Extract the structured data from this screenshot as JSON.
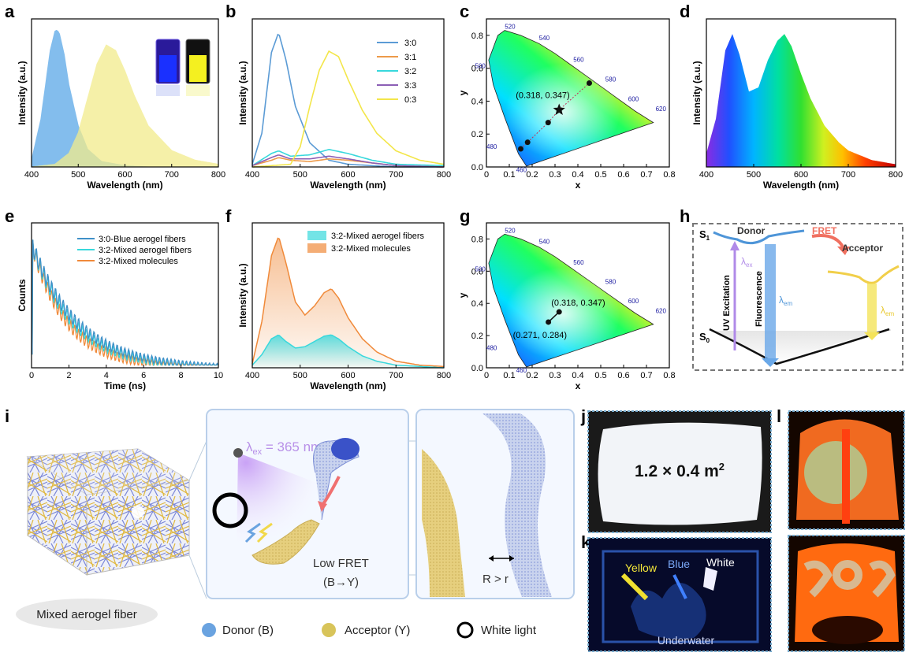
{
  "panels": {
    "a": "a",
    "b": "b",
    "c": "c",
    "d": "d",
    "e": "e",
    "f": "f",
    "g": "g",
    "h": "h",
    "i": "i",
    "j": "j",
    "k": "k",
    "l": "l"
  },
  "chart_data": [
    {
      "panel": "a",
      "type": "area",
      "xlabel": "Wavelength (nm)",
      "ylabel": "Intensity (a.u.)",
      "xlim": [
        400,
        800
      ],
      "xticks": [
        400,
        500,
        600,
        700,
        800
      ],
      "series": [
        {
          "color": "#5aa8e8",
          "x": [
            400,
            420,
            440,
            450,
            455,
            460,
            470,
            480,
            500,
            520,
            550,
            600,
            650,
            700,
            800
          ],
          "y": [
            0.05,
            0.35,
            0.85,
            0.99,
            1.0,
            0.97,
            0.82,
            0.6,
            0.3,
            0.13,
            0.04,
            0.01,
            0,
            0,
            0
          ]
        },
        {
          "color": "#f2ec8c",
          "x": [
            400,
            450,
            480,
            500,
            520,
            540,
            560,
            580,
            600,
            620,
            650,
            700,
            750,
            800
          ],
          "y": [
            0,
            0.02,
            0.1,
            0.25,
            0.5,
            0.75,
            0.89,
            0.85,
            0.7,
            0.52,
            0.3,
            0.12,
            0.05,
            0.02
          ]
        }
      ]
    },
    {
      "panel": "b",
      "type": "line",
      "xlabel": "Wavelength (nm)",
      "ylabel": "Intensity (a.u.)",
      "xlim": [
        400,
        800
      ],
      "xticks": [
        400,
        500,
        600,
        700,
        800
      ],
      "legend_position": "top-right",
      "series": [
        {
          "name": "3:0",
          "color": "#5b9bd5",
          "x": [
            400,
            420,
            440,
            455,
            470,
            490,
            520,
            560,
            600,
            700,
            800
          ],
          "y": [
            0.02,
            0.25,
            0.85,
            1.0,
            0.8,
            0.45,
            0.18,
            0.05,
            0.02,
            0,
            0
          ]
        },
        {
          "name": "3:1",
          "color": "#ed9a4a",
          "x": [
            400,
            440,
            455,
            480,
            520,
            560,
            600,
            650,
            700,
            800
          ],
          "y": [
            0.01,
            0.05,
            0.07,
            0.05,
            0.04,
            0.06,
            0.05,
            0.03,
            0.01,
            0
          ]
        },
        {
          "name": "3:2",
          "color": "#38d8dc",
          "x": [
            400,
            440,
            455,
            480,
            520,
            560,
            600,
            650,
            700,
            800
          ],
          "y": [
            0.01,
            0.1,
            0.12,
            0.08,
            0.09,
            0.13,
            0.1,
            0.05,
            0.02,
            0.01
          ]
        },
        {
          "name": "3:3",
          "color": "#8c5fb5",
          "x": [
            400,
            440,
            455,
            480,
            520,
            560,
            600,
            650,
            700,
            800
          ],
          "y": [
            0.01,
            0.07,
            0.09,
            0.06,
            0.06,
            0.08,
            0.06,
            0.03,
            0.01,
            0
          ]
        },
        {
          "name": "0:3",
          "color": "#f3e64a",
          "x": [
            400,
            480,
            500,
            520,
            540,
            560,
            580,
            600,
            630,
            660,
            700,
            750,
            800
          ],
          "y": [
            0,
            0.02,
            0.15,
            0.45,
            0.72,
            0.86,
            0.82,
            0.65,
            0.42,
            0.25,
            0.12,
            0.05,
            0.02
          ]
        }
      ]
    },
    {
      "panel": "c",
      "type": "scatter",
      "xlabel": "x",
      "ylabel": "y",
      "xlim": [
        0,
        0.8
      ],
      "ylim": [
        0,
        0.9
      ],
      "xticks": [
        0.0,
        0.1,
        0.2,
        0.3,
        0.4,
        0.5,
        0.6,
        0.7,
        0.8
      ],
      "yticks": [
        0.0,
        0.2,
        0.4,
        0.6,
        0.8
      ],
      "wavelength_labels": [
        "520",
        "540",
        "560",
        "580",
        "600",
        "620",
        "500",
        "480",
        "460"
      ],
      "points": [
        [
          0.15,
          0.11
        ],
        [
          0.18,
          0.15
        ],
        [
          0.27,
          0.27
        ],
        [
          0.318,
          0.347
        ],
        [
          0.45,
          0.51
        ]
      ],
      "annotation": "(0.318, 0.347)"
    },
    {
      "panel": "d",
      "type": "area",
      "xlabel": "Wavelength (nm)",
      "ylabel": "Intensity (a.u.)",
      "xlim": [
        400,
        800
      ],
      "xticks": [
        400,
        500,
        600,
        700,
        800
      ],
      "x": [
        400,
        420,
        440,
        455,
        470,
        490,
        510,
        530,
        550,
        565,
        580,
        600,
        620,
        650,
        680,
        700,
        750,
        800
      ],
      "y": [
        0.1,
        0.35,
        0.85,
        0.97,
        0.82,
        0.55,
        0.58,
        0.78,
        0.92,
        0.97,
        0.88,
        0.68,
        0.5,
        0.3,
        0.18,
        0.12,
        0.05,
        0.02
      ]
    },
    {
      "panel": "e",
      "type": "line",
      "xlabel": "Time (ns)",
      "ylabel": "Counts",
      "xlim": [
        0,
        10
      ],
      "xticks": [
        0,
        2,
        4,
        6,
        8,
        10
      ],
      "legend_position": "top-right",
      "series": [
        {
          "name": "3:0-Blue aerogel fibers",
          "color": "#3f90c8",
          "tau": 2.4
        },
        {
          "name": "3:2-Mixed aerogel fibers",
          "color": "#38d8dc",
          "tau": 2.2
        },
        {
          "name": "3:2-Mixed molecules",
          "color": "#f08a3a",
          "tau": 1.9
        }
      ]
    },
    {
      "panel": "f",
      "type": "area",
      "xlabel": "Wavelength (nm)",
      "ylabel": "Intensity (a.u.)",
      "xlim": [
        400,
        800
      ],
      "xticks": [
        400,
        500,
        600,
        700,
        800
      ],
      "legend_position": "top-right",
      "series": [
        {
          "name": "3:2-Mixed aerogel fibers",
          "color": "#38d8dc",
          "x": [
            400,
            420,
            440,
            455,
            470,
            490,
            510,
            530,
            550,
            565,
            580,
            600,
            630,
            660,
            700,
            750,
            800
          ],
          "y": [
            0.02,
            0.1,
            0.22,
            0.25,
            0.2,
            0.15,
            0.16,
            0.2,
            0.24,
            0.25,
            0.22,
            0.16,
            0.09,
            0.05,
            0.02,
            0.01,
            0
          ]
        },
        {
          "name": "3:2-Mixed molecules",
          "color": "#f08a3a",
          "x": [
            400,
            420,
            440,
            455,
            470,
            490,
            510,
            530,
            550,
            565,
            580,
            600,
            630,
            660,
            700,
            750,
            800
          ],
          "y": [
            0.03,
            0.35,
            0.85,
            1.0,
            0.8,
            0.5,
            0.4,
            0.47,
            0.57,
            0.6,
            0.53,
            0.38,
            0.22,
            0.12,
            0.05,
            0.02,
            0.01
          ]
        }
      ]
    },
    {
      "panel": "g",
      "type": "scatter",
      "xlabel": "x",
      "ylabel": "y",
      "xlim": [
        0,
        0.8
      ],
      "ylim": [
        0,
        0.9
      ],
      "xticks": [
        0.0,
        0.1,
        0.2,
        0.3,
        0.4,
        0.5,
        0.6,
        0.7,
        0.8
      ],
      "yticks": [
        0.0,
        0.2,
        0.4,
        0.6,
        0.8
      ],
      "points": [
        [
          0.271,
          0.284
        ],
        [
          0.318,
          0.347
        ]
      ],
      "annotations": [
        "(0.318, 0.347)",
        "(0.271, 0.284)"
      ]
    }
  ],
  "panel_h": {
    "s1": "S",
    "s0": "S",
    "sub1": "1",
    "sub0": "0",
    "donor": "Donor",
    "acceptor": "Acceptor",
    "fret": "FRET",
    "uv": "UV Excitation",
    "fluor": "Fluorescence",
    "lex": "λ",
    "lex_sub": "ex",
    "lem": "λ",
    "lem_sub": "em",
    "lem2": "λ",
    "lem2_sub": "em"
  },
  "panel_i": {
    "caption": "Mixed aerogel fiber",
    "lambda_ex": "λ",
    "lambda_ex_sub": "ex",
    "lambda_ex_val": " = 365 nm",
    "low_fret": "Low FRET",
    "by": "(B",
    "by2": "Y)",
    "rr": "R > r",
    "legend": [
      {
        "label": "Donor (B)",
        "color": "#6aa3e0"
      },
      {
        "label": "Acceptor (Y)",
        "color": "#d8c45a"
      },
      {
        "label": "White light",
        "color": "#000000"
      }
    ]
  },
  "panel_j": {
    "size": "1.2  × 0.4 m",
    "sup": "2"
  },
  "panel_k": {
    "yellow": "Yellow",
    "blue": "Blue",
    "white": "White",
    "underwater": "Underwater"
  }
}
